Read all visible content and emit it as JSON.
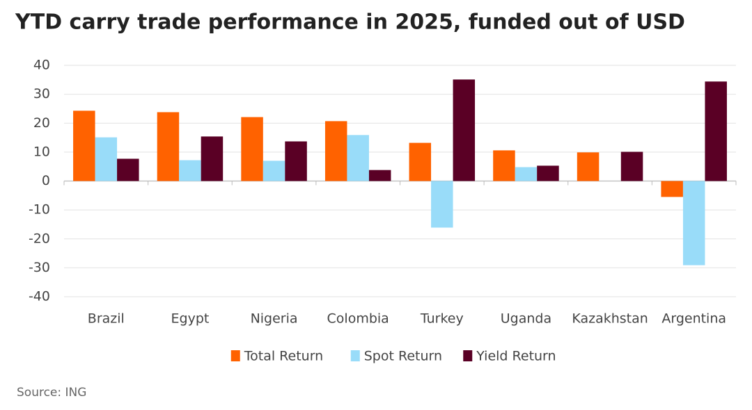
{
  "chart_data": {
    "type": "bar",
    "title": "YTD carry trade performance in 2025, funded out of USD",
    "source": "Source: ING",
    "categories": [
      "Brazil",
      "Egypt",
      "Nigeria",
      "Colombia",
      "Turkey",
      "Uganda",
      "Kazakhstan",
      "Argentina"
    ],
    "series": [
      {
        "name": "Total Return",
        "color": "#ff6200",
        "values": [
          24.3,
          23.8,
          22.1,
          20.7,
          13.2,
          10.6,
          9.9,
          -5.5
        ]
      },
      {
        "name": "Spot Return",
        "color": "#99dcf9",
        "values": [
          15.1,
          7.2,
          7.0,
          15.9,
          -16.1,
          4.8,
          0,
          -29.1
        ]
      },
      {
        "name": "Yield Return",
        "color": "#5a0025",
        "values": [
          7.7,
          15.4,
          13.7,
          3.8,
          35.1,
          5.3,
          10.1,
          34.4
        ]
      }
    ],
    "ylim": [
      -40,
      40
    ],
    "yticks": [
      -40,
      -30,
      -20,
      -10,
      0,
      10,
      20,
      30,
      40
    ],
    "grid": true,
    "legend": "bottom"
  }
}
